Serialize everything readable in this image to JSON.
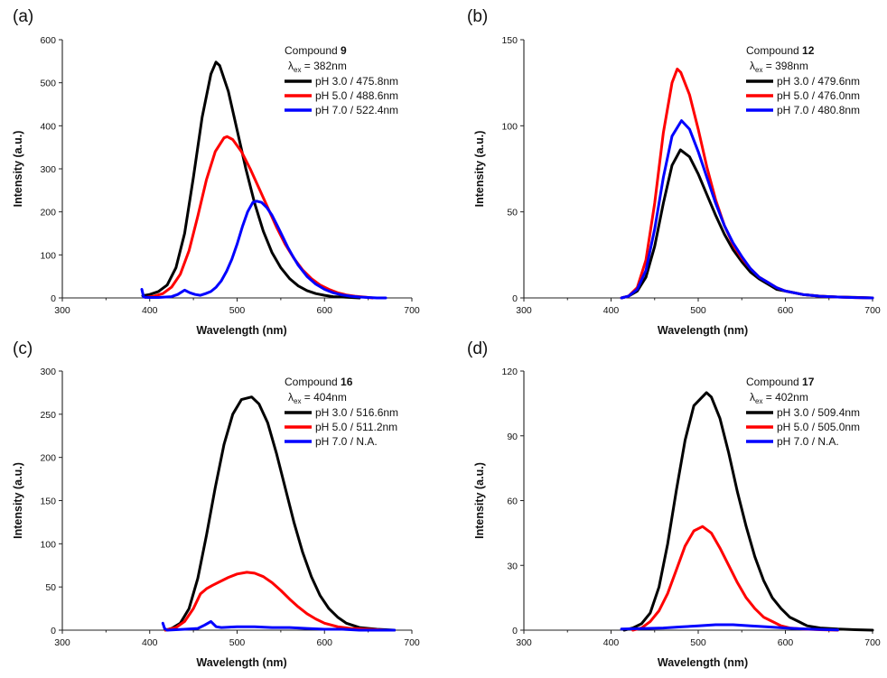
{
  "figure": {
    "panels": [
      {
        "label": "(a)",
        "compound_prefix": "Compound ",
        "compound_number": "9",
        "excitation_label": "λ",
        "excitation_sub": "ex",
        "excitation_value": " = 382nm",
        "xlabel": "Wavelength (nm)",
        "ylabel": "Intensity (a.u.)",
        "xlim": [
          300,
          700
        ],
        "ylim": [
          0,
          600
        ],
        "xticks": [
          "300",
          "400",
          "500",
          "600",
          "700"
        ],
        "yticks": [
          "0",
          "100",
          "200",
          "300",
          "400",
          "500",
          "600"
        ],
        "legend": [
          "pH 3.0 / 475.8nm",
          "pH 5.0 / 488.6nm",
          "pH 7.0 / 522.4nm"
        ]
      },
      {
        "label": "(b)",
        "compound_prefix": "Compound ",
        "compound_number": "12",
        "excitation_label": "λ",
        "excitation_sub": "ex",
        "excitation_value": " = 398nm",
        "xlabel": "Wavelength (nm)",
        "ylabel": "Intensity (a.u.)",
        "xlim": [
          300,
          700
        ],
        "ylim": [
          0,
          150
        ],
        "xticks": [
          "300",
          "400",
          "500",
          "600",
          "700"
        ],
        "yticks": [
          "0",
          "50",
          "100",
          "150"
        ],
        "legend": [
          "pH 3.0 / 479.6nm",
          "pH 5.0 / 476.0nm",
          "pH 7.0 / 480.8nm"
        ]
      },
      {
        "label": "(c)",
        "compound_prefix": "Compound ",
        "compound_number": "16",
        "excitation_label": "λ",
        "excitation_sub": "ex",
        "excitation_value": " = 404nm",
        "xlabel": "Wavelength (nm)",
        "ylabel": "Intensity (a.u.)",
        "xlim": [
          300,
          700
        ],
        "ylim": [
          0,
          300
        ],
        "xticks": [
          "300",
          "400",
          "500",
          "600",
          "700"
        ],
        "yticks": [
          "0",
          "50",
          "100",
          "150",
          "200",
          "250",
          "300"
        ],
        "legend": [
          "pH 3.0 / 516.6nm",
          "pH 5.0 / 511.2nm",
          "pH 7.0 / N.A."
        ]
      },
      {
        "label": "(d)",
        "compound_prefix": "Compound ",
        "compound_number": "17",
        "excitation_label": "λ",
        "excitation_sub": "ex",
        "excitation_value": " = 402nm",
        "xlabel": "Wavelength (nm)",
        "ylabel": "Intensity (a.u.)",
        "xlim": [
          300,
          700
        ],
        "ylim": [
          0,
          120
        ],
        "xticks": [
          "300",
          "400",
          "500",
          "600",
          "700"
        ],
        "yticks": [
          "0",
          "30",
          "60",
          "90",
          "120"
        ],
        "legend": [
          "pH 3.0 / 509.4nm",
          "pH 5.0 / 505.0nm",
          "pH 7.0 / N.A."
        ]
      }
    ]
  },
  "chart_data": [
    {
      "type": "line",
      "title": "Compound 9, λex = 382nm",
      "xlabel": "Wavelength (nm)",
      "ylabel": "Intensity (a.u.)",
      "xlim": [
        300,
        700
      ],
      "ylim": [
        0,
        600
      ],
      "series": [
        {
          "name": "pH 3.0 / 475.8nm",
          "color": "#000000",
          "x": [
            392,
            400,
            410,
            420,
            430,
            440,
            450,
            460,
            470,
            475.8,
            480,
            490,
            500,
            510,
            520,
            530,
            540,
            550,
            560,
            570,
            580,
            590,
            600,
            610,
            620,
            630,
            640
          ],
          "y": [
            5,
            8,
            15,
            30,
            70,
            150,
            280,
            420,
            520,
            548,
            540,
            480,
            390,
            300,
            220,
            155,
            105,
            70,
            45,
            28,
            17,
            10,
            6,
            3,
            2,
            1,
            0
          ]
        },
        {
          "name": "pH 5.0 / 488.6nm",
          "color": "#ff0000",
          "x": [
            395,
            405,
            415,
            425,
            435,
            445,
            455,
            465,
            475,
            485,
            488.6,
            495,
            505,
            515,
            525,
            535,
            545,
            555,
            565,
            575,
            585,
            595,
            605,
            615,
            625,
            635,
            645,
            655
          ],
          "y": [
            1,
            4,
            10,
            25,
            55,
            110,
            190,
            275,
            340,
            372,
            375,
            368,
            340,
            300,
            255,
            210,
            165,
            125,
            92,
            65,
            45,
            30,
            20,
            12,
            7,
            4,
            2,
            0
          ]
        },
        {
          "name": "pH 7.0 / 522.4nm",
          "color": "#0000ff",
          "x": [
            391,
            393,
            398,
            410,
            425,
            432,
            440,
            446,
            452,
            458,
            464,
            470,
            476,
            482,
            488,
            494,
            500,
            506,
            512,
            518,
            522.4,
            528,
            534,
            540,
            546,
            552,
            558,
            564,
            570,
            580,
            590,
            600,
            610,
            620,
            630,
            640,
            650,
            660,
            670
          ],
          "y": [
            20,
            2,
            1,
            1,
            3,
            8,
            18,
            12,
            8,
            6,
            10,
            15,
            25,
            40,
            62,
            90,
            125,
            165,
            200,
            222,
            225,
            222,
            210,
            192,
            168,
            143,
            118,
            96,
            76,
            50,
            32,
            20,
            12,
            7,
            4,
            2,
            1,
            0,
            0
          ]
        }
      ]
    },
    {
      "type": "line",
      "title": "Compound 12, λex = 398nm",
      "xlabel": "Wavelength (nm)",
      "ylabel": "Intensity (a.u.)",
      "xlim": [
        300,
        700
      ],
      "ylim": [
        0,
        150
      ],
      "series": [
        {
          "name": "pH 3.0 / 479.6nm",
          "color": "#000000",
          "x": [
            412,
            420,
            430,
            440,
            450,
            460,
            470,
            479.6,
            490,
            500,
            510,
            520,
            530,
            540,
            550,
            560,
            570,
            580,
            590,
            600,
            620,
            640,
            660,
            680,
            700
          ],
          "y": [
            0,
            1,
            4,
            12,
            30,
            55,
            77,
            86,
            82,
            72,
            60,
            48,
            37,
            28,
            21,
            15,
            11,
            8,
            5,
            4,
            2,
            1,
            0.5,
            0.3,
            0
          ]
        },
        {
          "name": "pH 5.0 / 476.0nm",
          "color": "#ff0000",
          "x": [
            412,
            420,
            430,
            440,
            450,
            460,
            470,
            476,
            480,
            490,
            500,
            510,
            520,
            530,
            540,
            550,
            560,
            570,
            580,
            590,
            600,
            620,
            640,
            660,
            680,
            700
          ],
          "y": [
            0,
            1,
            6,
            22,
            55,
            96,
            125,
            133,
            131,
            118,
            98,
            76,
            57,
            42,
            31,
            23,
            17,
            12,
            9,
            6,
            4,
            2,
            1,
            0.5,
            0.2,
            0
          ]
        },
        {
          "name": "pH 7.0 / 480.8nm",
          "color": "#0000ff",
          "x": [
            412,
            420,
            430,
            440,
            450,
            460,
            470,
            480.8,
            490,
            500,
            510,
            520,
            530,
            540,
            550,
            560,
            570,
            580,
            590,
            600,
            620,
            640,
            660,
            680,
            700
          ],
          "y": [
            0,
            1,
            5,
            16,
            40,
            70,
            94,
            103,
            98,
            85,
            70,
            55,
            42,
            32,
            24,
            17,
            12,
            9,
            6,
            4,
            2,
            1,
            0.5,
            0.2,
            0
          ]
        }
      ]
    },
    {
      "type": "line",
      "title": "Compound 16, λex = 404nm",
      "xlabel": "Wavelength (nm)",
      "ylabel": "Intensity (a.u.)",
      "xlim": [
        300,
        700
      ],
      "ylim": [
        0,
        300
      ],
      "series": [
        {
          "name": "pH 3.0 / 516.6nm",
          "color": "#000000",
          "x": [
            418,
            425,
            435,
            445,
            455,
            465,
            475,
            485,
            495,
            505,
            516.6,
            525,
            535,
            545,
            555,
            565,
            575,
            585,
            595,
            605,
            615,
            625,
            640,
            660,
            680
          ],
          "y": [
            0,
            2,
            8,
            25,
            60,
            110,
            165,
            215,
            250,
            267,
            270,
            262,
            240,
            205,
            165,
            125,
            90,
            62,
            40,
            25,
            15,
            8,
            3,
            1,
            0
          ]
        },
        {
          "name": "pH 5.0 / 511.2nm",
          "color": "#ff0000",
          "x": [
            418,
            430,
            440,
            450,
            458,
            465,
            472,
            480,
            490,
            500,
            511.2,
            520,
            530,
            540,
            550,
            560,
            570,
            580,
            590,
            600,
            615,
            630,
            650,
            670
          ],
          "y": [
            0,
            3,
            10,
            25,
            42,
            48,
            52,
            56,
            61,
            65,
            67,
            66,
            62,
            55,
            46,
            36,
            27,
            19,
            13,
            8,
            4,
            2,
            1,
            0
          ]
        },
        {
          "name": "pH 7.0 / N.A.",
          "color": "#0000ff",
          "x": [
            415,
            417,
            420,
            440,
            455,
            463,
            470,
            476,
            482,
            500,
            520,
            540,
            560,
            580,
            600,
            620,
            640,
            660,
            680
          ],
          "y": [
            8,
            2,
            0,
            1,
            2,
            6,
            10,
            4,
            3,
            4,
            4,
            3,
            3,
            2,
            1,
            1,
            0,
            0,
            0
          ]
        }
      ]
    },
    {
      "type": "line",
      "title": "Compound 17, λex = 402nm",
      "xlabel": "Wavelength (nm)",
      "ylabel": "Intensity (a.u.)",
      "xlim": [
        300,
        700
      ],
      "ylim": [
        0,
        120
      ],
      "series": [
        {
          "name": "pH 3.0 / 509.4nm",
          "color": "#000000",
          "x": [
            415,
            425,
            435,
            445,
            455,
            465,
            475,
            485,
            495,
            509.4,
            515,
            525,
            535,
            545,
            555,
            565,
            575,
            585,
            595,
            605,
            615,
            625,
            640,
            660,
            680,
            700
          ],
          "y": [
            0,
            1,
            3,
            8,
            20,
            40,
            65,
            88,
            104,
            110,
            108,
            98,
            82,
            64,
            48,
            34,
            23,
            15,
            10,
            6,
            4,
            2,
            1,
            0.5,
            0.2,
            0
          ]
        },
        {
          "name": "pH 5.0 / 505.0nm",
          "color": "#ff0000",
          "x": [
            425,
            435,
            445,
            455,
            465,
            475,
            485,
            495,
            505,
            515,
            525,
            535,
            545,
            555,
            565,
            575,
            585,
            595,
            605,
            620,
            640,
            660
          ],
          "y": [
            0,
            1,
            4,
            9,
            17,
            28,
            39,
            46,
            48,
            45,
            38,
            30,
            22,
            15,
            10,
            6,
            4,
            2,
            1,
            0.5,
            0.2,
            0
          ]
        },
        {
          "name": "pH 7.0 / N.A.",
          "color": "#0000ff",
          "x": [
            412,
            440,
            460,
            480,
            500,
            520,
            540,
            560,
            580,
            600,
            620,
            640,
            660
          ],
          "y": [
            0.5,
            0.8,
            1,
            1.5,
            2,
            2.5,
            2.5,
            2,
            1.5,
            1,
            0.6,
            0.3,
            0.1
          ]
        }
      ]
    }
  ]
}
